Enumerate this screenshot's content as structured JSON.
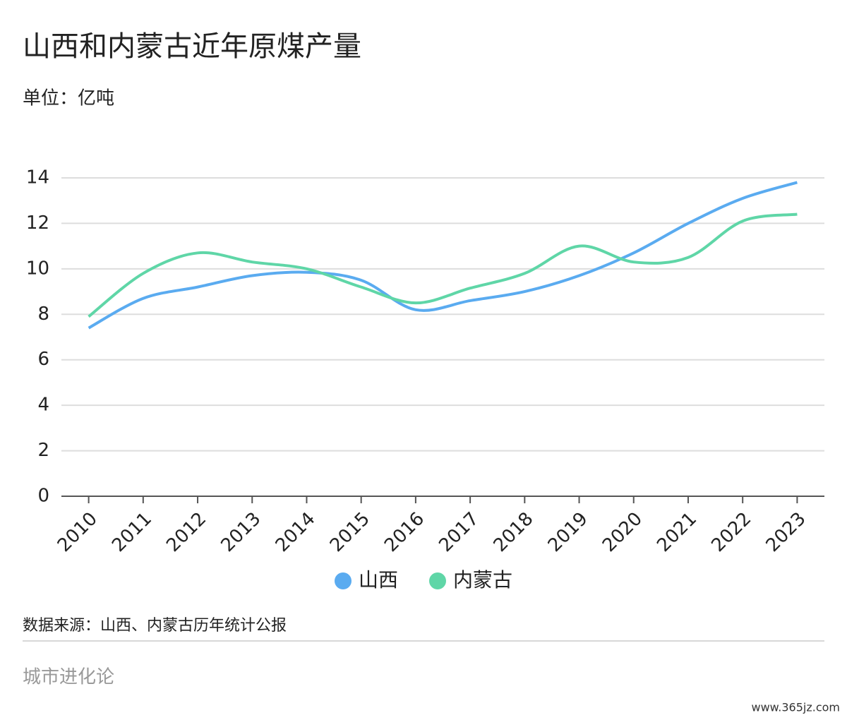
{
  "chart_data": {
    "type": "line",
    "title": "山西和内蒙古近年原煤产量",
    "subtitle": "单位：亿吨",
    "categories": [
      "2010",
      "2011",
      "2012",
      "2013",
      "2014",
      "2015",
      "2016",
      "2017",
      "2018",
      "2019",
      "2020",
      "2021",
      "2022",
      "2023"
    ],
    "series": [
      {
        "name": "山西",
        "color": "#5aabf0",
        "values": [
          7.4,
          8.7,
          9.2,
          9.7,
          9.85,
          9.5,
          8.2,
          8.6,
          9.0,
          9.7,
          10.7,
          12.0,
          13.1,
          13.8
        ]
      },
      {
        "name": "内蒙古",
        "color": "#5fd6a7",
        "values": [
          7.9,
          9.8,
          10.7,
          10.3,
          10.0,
          9.2,
          8.5,
          9.15,
          9.8,
          11.0,
          10.3,
          10.5,
          12.1,
          12.4
        ]
      }
    ],
    "ylim": [
      0,
      14
    ],
    "yticks": [
      0,
      2,
      4,
      6,
      8,
      10,
      12,
      14
    ],
    "grid": true,
    "source": "数据来源：山西、内蒙古历年统计公报",
    "brand": "城市进化论",
    "site": "www.365jz.com"
  }
}
